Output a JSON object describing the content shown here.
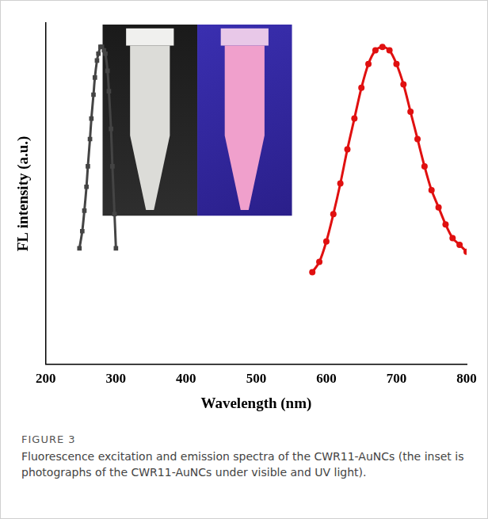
{
  "chart_data": {
    "type": "scatter",
    "x_label": "Wavelength (nm)",
    "y_label": "FL intensity (a.u.)",
    "caption": {
      "label": "FIGURE 3",
      "text": "Fluorescence excitation and emission spectra of the CWR11-AuNCs (the inset is photographs of the CWR11-AuNCs under visible and UV light)."
    },
    "xlim": [
      200,
      800
    ],
    "xticks": [
      200,
      300,
      400,
      500,
      600,
      700,
      800
    ],
    "ylim": [
      0,
      1
    ],
    "yticks": [],
    "tick_labels": "x",
    "grid": false,
    "series": [
      {
        "color": "#444444",
        "marker": "square",
        "x": [
          248,
          252,
          255,
          258,
          260,
          263,
          265,
          268,
          270,
          273,
          275,
          278,
          280,
          283,
          285,
          288,
          290,
          293,
          295,
          298,
          300
        ],
        "values": [
          0.34,
          0.39,
          0.45,
          0.52,
          0.58,
          0.66,
          0.72,
          0.79,
          0.84,
          0.89,
          0.91,
          0.93,
          0.93,
          0.92,
          0.91,
          0.86,
          0.8,
          0.69,
          0.58,
          0.44,
          0.34
        ]
      },
      {
        "color": "#e01010",
        "marker": "circle",
        "x": [
          580,
          590,
          600,
          610,
          620,
          630,
          640,
          650,
          660,
          670,
          680,
          690,
          700,
          710,
          720,
          730,
          740,
          750,
          760,
          770,
          780,
          790,
          800
        ],
        "values": [
          0.27,
          0.3,
          0.36,
          0.44,
          0.53,
          0.63,
          0.72,
          0.81,
          0.88,
          0.92,
          0.93,
          0.92,
          0.88,
          0.82,
          0.74,
          0.66,
          0.58,
          0.51,
          0.46,
          0.41,
          0.37,
          0.35,
          0.33
        ]
      }
    ]
  }
}
